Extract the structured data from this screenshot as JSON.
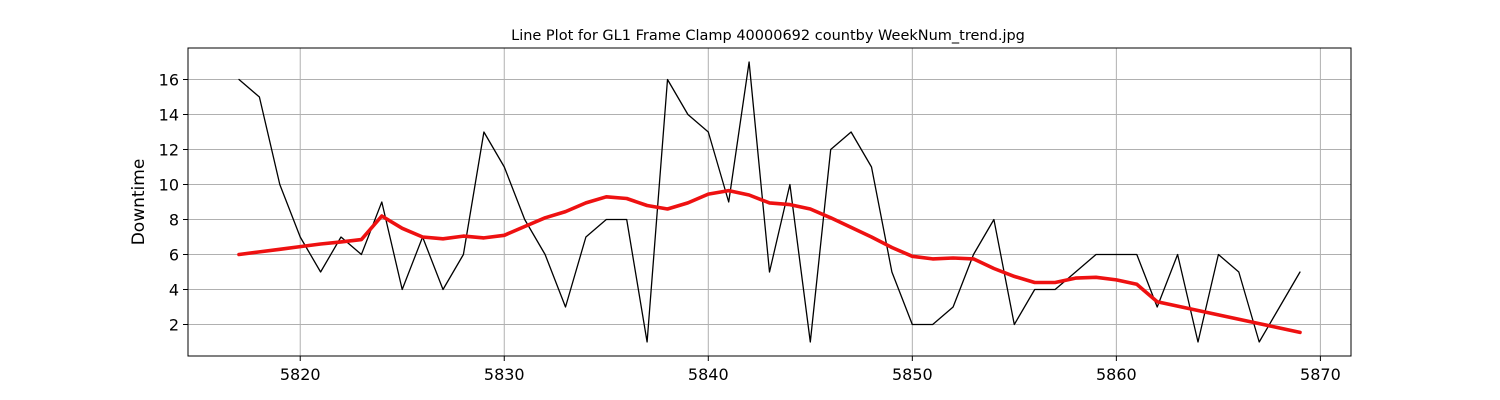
{
  "chart_data": {
    "type": "line",
    "title": "Line Plot for GL1 Frame Clamp 40000692 countby WeekNum_trend.jpg",
    "xlabel": "",
    "ylabel": "Downtime",
    "xlim": [
      5814.5,
      5871.5
    ],
    "ylim": [
      0.2,
      17.8
    ],
    "xticks": [
      5820,
      5830,
      5840,
      5850,
      5860,
      5870
    ],
    "yticks": [
      2,
      4,
      6,
      8,
      10,
      12,
      14,
      16
    ],
    "grid": true,
    "series": [
      {
        "color": "#000000",
        "x": [
          5817,
          5818,
          5819,
          5820,
          5821,
          5822,
          5823,
          5824,
          5825,
          5826,
          5827,
          5828,
          5829,
          5830,
          5831,
          5832,
          5833,
          5834,
          5835,
          5836,
          5837,
          5838,
          5839,
          5840,
          5841,
          5842,
          5843,
          5844,
          5845,
          5846,
          5847,
          5848,
          5849,
          5850,
          5851,
          5852,
          5853,
          5854,
          5855,
          5856,
          5857,
          5858,
          5859,
          5860,
          5861,
          5862,
          5863,
          5864,
          5865,
          5866,
          5867,
          5868,
          5869
        ],
        "y": [
          16,
          15,
          10,
          7,
          5,
          7,
          6,
          9,
          4,
          7,
          4,
          6,
          13,
          11,
          8,
          6,
          3,
          7,
          8,
          8,
          1,
          16,
          14,
          13,
          9,
          17,
          5,
          10,
          1,
          12,
          13,
          11,
          5,
          2,
          2,
          3,
          6,
          8,
          2,
          4,
          4,
          5,
          6,
          6,
          6,
          3,
          6,
          1,
          6,
          5,
          1,
          3,
          5
        ]
      },
      {
        "color": "#ee1111",
        "x": [
          5817,
          5818,
          5819,
          5820,
          5821,
          5822,
          5823,
          5824,
          5825,
          5826,
          5827,
          5828,
          5829,
          5830,
          5831,
          5832,
          5833,
          5834,
          5835,
          5836,
          5837,
          5838,
          5839,
          5840,
          5841,
          5842,
          5843,
          5844,
          5845,
          5846,
          5847,
          5848,
          5849,
          5850,
          5851,
          5852,
          5853,
          5854,
          5855,
          5856,
          5857,
          5858,
          5859,
          5860,
          5861,
          5862,
          5863,
          5864,
          5865,
          5866,
          5867,
          5868,
          5869
        ],
        "y": [
          6.0,
          6.15,
          6.3,
          6.45,
          6.6,
          6.72,
          6.85,
          8.2,
          7.5,
          7.0,
          6.9,
          7.05,
          6.95,
          7.1,
          7.6,
          8.1,
          8.45,
          8.95,
          9.3,
          9.2,
          8.8,
          8.6,
          8.95,
          9.45,
          9.65,
          9.4,
          8.95,
          8.85,
          8.6,
          8.1,
          7.55,
          7.0,
          6.4,
          5.9,
          5.75,
          5.8,
          5.75,
          5.2,
          4.75,
          4.4,
          4.4,
          4.65,
          4.7,
          4.55,
          4.3,
          3.3,
          3.05,
          2.8,
          2.55,
          2.3,
          2.05,
          1.8,
          1.55
        ]
      }
    ]
  }
}
